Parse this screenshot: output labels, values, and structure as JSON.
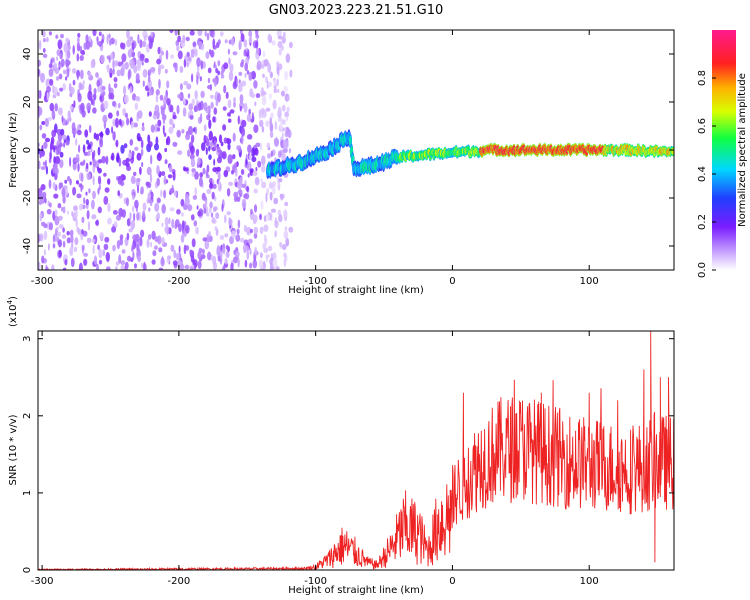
{
  "title": "GN03.2023.223.21.51.G10",
  "chart_data": [
    {
      "type": "heatmap",
      "xlabel": "Height of straight line (km)",
      "ylabel": "Frequency (Hz)",
      "xlim": [
        -303,
        162
      ],
      "ylim": [
        -50,
        50
      ],
      "xticks": [
        -300,
        -200,
        -100,
        0,
        100
      ],
      "yticks": [
        -40,
        -20,
        0,
        20,
        40
      ],
      "colorbar": {
        "label": "Normalized spectral amplitude",
        "range": [
          0,
          1
        ],
        "ticks": [
          0.0,
          0.2,
          0.4,
          0.6,
          0.8
        ],
        "tick_labels": [
          "0.0",
          "0.2",
          "0.4",
          "0.6",
          "0.8"
        ],
        "colormap": "white-violet-blue-cyan-green-yellow-red-magenta"
      },
      "features": {
        "noise_region_x": [
          -303,
          -118
        ],
        "signal_track": [
          {
            "x": -130,
            "y": -8
          },
          {
            "x": -110,
            "y": -5
          },
          {
            "x": -90,
            "y": 0
          },
          {
            "x": -75,
            "y": 6
          },
          {
            "x": -72,
            "y": -8
          },
          {
            "x": -55,
            "y": -6
          },
          {
            "x": -40,
            "y": -3
          },
          {
            "x": -20,
            "y": -2
          },
          {
            "x": 0,
            "y": -1
          },
          {
            "x": 30,
            "y": 0
          },
          {
            "x": 60,
            "y": 0
          },
          {
            "x": 100,
            "y": 0
          },
          {
            "x": 130,
            "y": 0
          },
          {
            "x": 162,
            "y": -1
          }
        ],
        "peak_amplitude_x": [
          20,
          110
        ]
      }
    },
    {
      "type": "line",
      "xlabel": "Height of straight line (km)",
      "ylabel": "SNR (10 * v/v)",
      "yscale_label": "(x10",
      "yscale_exponent": "4",
      "yscale_close": ")",
      "xlim": [
        -303,
        162
      ],
      "ylim": [
        0,
        3.1
      ],
      "xticks": [
        -300,
        -200,
        -100,
        0,
        100
      ],
      "yticks": [
        0,
        1,
        2,
        3
      ],
      "color": "#ee2222",
      "series": [
        {
          "envelope": [
            {
              "x": -303,
              "y": 0.0
            },
            {
              "x": -110,
              "y": 0.02
            },
            {
              "x": -100,
              "y": 0.05
            },
            {
              "x": -90,
              "y": 0.18
            },
            {
              "x": -80,
              "y": 0.4
            },
            {
              "x": -72,
              "y": 0.3
            },
            {
              "x": -62,
              "y": 0.12
            },
            {
              "x": -55,
              "y": 0.08
            },
            {
              "x": -45,
              "y": 0.35
            },
            {
              "x": -35,
              "y": 0.7
            },
            {
              "x": -25,
              "y": 0.6
            },
            {
              "x": -18,
              "y": 0.3
            },
            {
              "x": -10,
              "y": 0.75
            },
            {
              "x": 0,
              "y": 0.95
            },
            {
              "x": 10,
              "y": 1.15
            },
            {
              "x": 20,
              "y": 1.4
            },
            {
              "x": 35,
              "y": 1.55
            },
            {
              "x": 50,
              "y": 1.6
            },
            {
              "x": 70,
              "y": 1.5
            },
            {
              "x": 90,
              "y": 1.4
            },
            {
              "x": 110,
              "y": 1.35
            },
            {
              "x": 130,
              "y": 1.3
            },
            {
              "x": 150,
              "y": 1.4
            },
            {
              "x": 162,
              "y": 1.4
            }
          ],
          "spikes": [
            {
              "x": 8,
              "y": 2.3
            },
            {
              "x": 65,
              "y": 2.3
            },
            {
              "x": 100,
              "y": 2.3
            },
            {
              "x": 140,
              "y": 2.6
            },
            {
              "x": 145,
              "y": 3.1
            },
            {
              "x": 152,
              "y": 2.5
            },
            {
              "x": 158,
              "y": 2.5
            },
            {
              "x": 148,
              "y": 0.1
            }
          ]
        }
      ]
    }
  ]
}
